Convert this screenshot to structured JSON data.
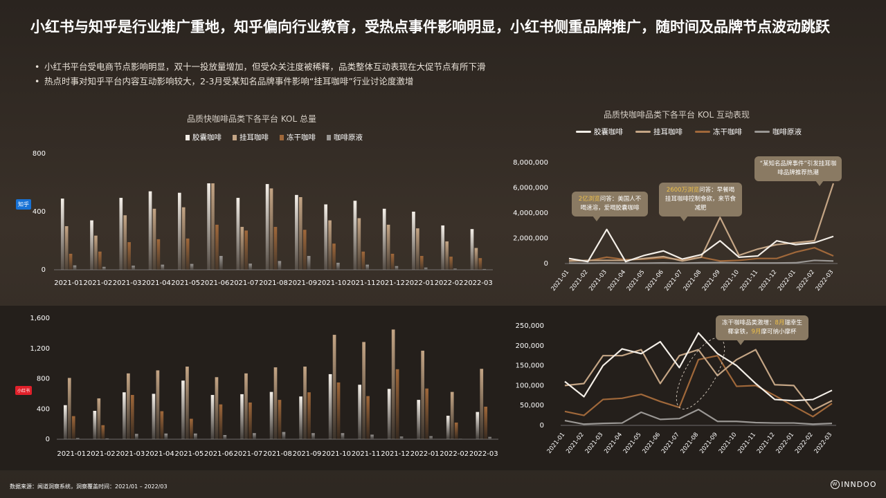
{
  "title": "小红书与知乎是行业推广重地，知乎偏向行业教育，受热点事件影响明显，小红书侧重品牌推广，随时间及品牌节点波动跳跃",
  "bullets": [
    "小红书平台受电商节点影响明显，双十一投放量增加，但受众关注度被稀释，品类整体互动表现在大促节点有所下滑",
    "热点时事对知乎平台内容互动影响较大，2-3月受某知名品牌事件影响“挂耳咖啡”行业讨论度激增"
  ],
  "platforms": {
    "zhihu": "知乎",
    "xhs": "小红书"
  },
  "colors": {
    "capsule": "#f4efe8",
    "drip": "#c4a585",
    "freeze": "#a0683a",
    "liquid": "#9a9794"
  },
  "annotations": {
    "a1_hl": "2亿浏览",
    "a1_text": "问答：美国人不喝速溶，爱喝胶囊咖啡",
    "a2_hl": "2600万浏览",
    "a2_text": "问答：早餐喝挂耳咖啡控制食欲，来节食减肥",
    "a3_text": "“某知名品牌事件”引发挂耳咖啡品牌推荐热潮",
    "a4_text1": "冻干咖啡品类激增：",
    "a4_hl1": "8月",
    "a4_text2": "瑞幸生椰拿铁，",
    "a4_hl2": "9月",
    "a4_text3": "摩可纳小摩杯"
  },
  "footer": "数据来源：闻道洞察系统，洞察覆盖时间：2021/01 – 2022/03",
  "logo": "INNDOO",
  "chart_data": [
    {
      "id": "zhihu_kol",
      "type": "bar",
      "title": "品质快咖啡品类下各平台 KOL 总量",
      "categories": [
        "2021-01",
        "2021-02",
        "2021-03",
        "2021-04",
        "2021-05",
        "2021-06",
        "2021-07",
        "2021-08",
        "2021-09",
        "2021-10",
        "2021-11",
        "2021-12",
        "2022-01",
        "2022-02",
        "2022-03"
      ],
      "ylim": [
        0,
        800
      ],
      "yticks": [
        0,
        400,
        800
      ],
      "series": [
        {
          "name": "胶囊咖啡",
          "values": [
            490,
            340,
            495,
            540,
            530,
            595,
            495,
            590,
            515,
            450,
            475,
            420,
            400,
            305,
            280
          ]
        },
        {
          "name": "挂耳咖啡",
          "values": [
            300,
            235,
            375,
            420,
            430,
            595,
            295,
            560,
            500,
            340,
            355,
            310,
            285,
            195,
            150
          ]
        },
        {
          "name": "冻干咖啡",
          "values": [
            110,
            125,
            190,
            210,
            215,
            310,
            270,
            295,
            275,
            180,
            125,
            110,
            95,
            90,
            80
          ]
        },
        {
          "name": "咖啡原液",
          "values": [
            30,
            20,
            28,
            35,
            40,
            95,
            42,
            60,
            95,
            48,
            35,
            25,
            15,
            8,
            5
          ]
        }
      ]
    },
    {
      "id": "zhihu_interact",
      "type": "line",
      "title": "品质快咖啡品类下各平台 KOL 互动表现",
      "categories": [
        "2021-01",
        "2021-02",
        "2021-03",
        "2021-04",
        "2021-05",
        "2021-06",
        "2021-07",
        "2021-08",
        "2021-09",
        "2021-10",
        "2021-11",
        "2021-12",
        "2022-01",
        "2022-02",
        "2022-03"
      ],
      "ylim": [
        0,
        8000000
      ],
      "yticks": [
        0,
        2000000,
        4000000,
        6000000,
        8000000
      ],
      "series": [
        {
          "name": "胶囊咖啡",
          "values": [
            400000,
            150000,
            2700000,
            150000,
            650000,
            1000000,
            350000,
            700000,
            1800000,
            500000,
            600000,
            1800000,
            1500000,
            1650000,
            2150000
          ]
        },
        {
          "name": "挂耳咖啡",
          "values": [
            200000,
            250000,
            250000,
            250000,
            400000,
            550000,
            200000,
            500000,
            3650000,
            650000,
            1150000,
            1500000,
            1650000,
            1800000,
            6350000
          ]
        },
        {
          "name": "冻干咖啡",
          "values": [
            250000,
            200000,
            500000,
            300000,
            350000,
            450000,
            300000,
            500000,
            200000,
            250000,
            400000,
            400000,
            900000,
            1250000,
            600000
          ]
        },
        {
          "name": "咖啡原液",
          "values": [
            30000,
            20000,
            40000,
            30000,
            30000,
            50000,
            30000,
            60000,
            80000,
            50000,
            40000,
            40000,
            60000,
            250000,
            200000
          ]
        }
      ]
    },
    {
      "id": "xhs_kol",
      "type": "bar",
      "categories": [
        "2021-01",
        "2021-02",
        "2021-03",
        "2021-04",
        "2021-05",
        "2021-06",
        "2021-07",
        "2021-08",
        "2021-09",
        "2021-10",
        "2021-11",
        "2021-12",
        "2022-01",
        "2022-02",
        "2022-03"
      ],
      "ylim": [
        0,
        1600
      ],
      "yticks": [
        0,
        400,
        800,
        1200,
        1600
      ],
      "series": [
        {
          "name": "胶囊咖啡",
          "values": [
            450,
            375,
            620,
            600,
            775,
            585,
            595,
            625,
            565,
            860,
            720,
            665,
            520,
            310,
            360
          ]
        },
        {
          "name": "挂耳咖啡",
          "values": [
            810,
            540,
            870,
            910,
            960,
            820,
            870,
            950,
            960,
            1380,
            1285,
            1450,
            1170,
            625,
            930
          ]
        },
        {
          "name": "冻干咖啡",
          "values": [
            305,
            185,
            585,
            370,
            270,
            460,
            485,
            520,
            620,
            750,
            570,
            925,
            670,
            220,
            430
          ]
        },
        {
          "name": "咖啡原液",
          "values": [
            15,
            10,
            70,
            75,
            75,
            55,
            80,
            95,
            80,
            80,
            60,
            35,
            40,
            5,
            30
          ]
        }
      ]
    },
    {
      "id": "xhs_interact",
      "type": "line",
      "categories": [
        "2021-01",
        "2021-02",
        "2021-03",
        "2021-04",
        "2021-05",
        "2021-06",
        "2021-07",
        "2021-08",
        "2021-09",
        "2021-10",
        "2021-11",
        "2021-12",
        "2022-01",
        "2022-02",
        "2022-03"
      ],
      "ylim": [
        0,
        250000
      ],
      "yticks": [
        0,
        50000,
        100000,
        150000,
        200000,
        250000
      ],
      "series": [
        {
          "name": "胶囊咖啡",
          "values": [
            110000,
            72000,
            150000,
            192000,
            180000,
            210000,
            145000,
            232000,
            180000,
            150000,
            105000,
            65000,
            62000,
            65000,
            88000
          ]
        },
        {
          "name": "挂耳咖啡",
          "values": [
            100000,
            105000,
            175000,
            175000,
            190000,
            105000,
            175000,
            190000,
            125000,
            165000,
            190000,
            102000,
            100000,
            38000,
            62000
          ]
        },
        {
          "name": "冻干咖啡",
          "values": [
            35000,
            25000,
            65000,
            68000,
            78000,
            60000,
            45000,
            165000,
            175000,
            98000,
            100000,
            75000,
            48000,
            22000,
            55000
          ]
        },
        {
          "name": "咖啡原液",
          "values": [
            12000,
            3000,
            5000,
            6000,
            33000,
            15000,
            17000,
            40000,
            10000,
            10000,
            7000,
            6000,
            6000,
            3000,
            5000
          ]
        }
      ]
    }
  ]
}
